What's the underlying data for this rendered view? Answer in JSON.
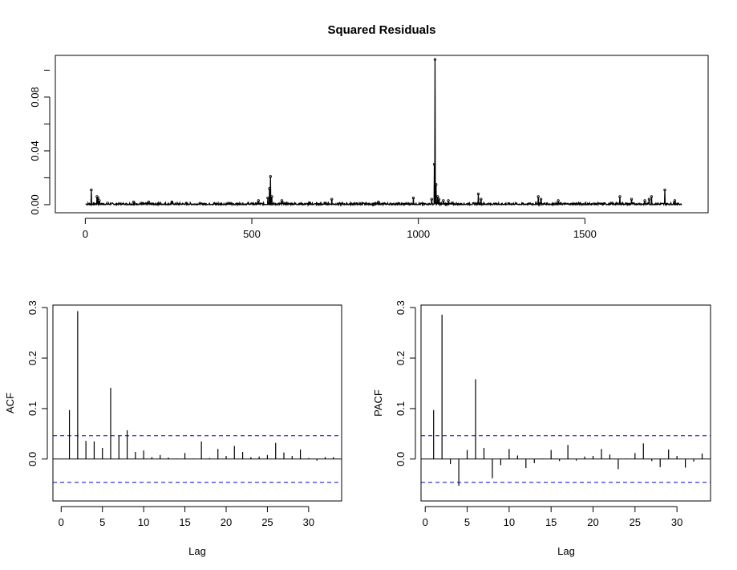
{
  "chart_data": [
    {
      "type": "line",
      "title": "Squared Residuals",
      "xlabel": "",
      "ylabel": "",
      "xlim": [
        -90,
        1870
      ],
      "ylim": [
        -0.006,
        0.111
      ],
      "x_ticks": [
        0,
        500,
        1000,
        1500
      ],
      "x_tick_labels": [
        "0",
        "500",
        "1000",
        "1500"
      ],
      "y_ticks": [
        0.0,
        0.04,
        0.08
      ],
      "y_tick_labels": [
        "0.00",
        "0.04",
        "0.08"
      ],
      "n_obs": 1790,
      "baseline_level": 0.0007,
      "spikes": [
        {
          "x": 18,
          "y": 0.011
        },
        {
          "x": 35,
          "y": 0.006
        },
        {
          "x": 38,
          "y": 0.005
        },
        {
          "x": 42,
          "y": 0.003
        },
        {
          "x": 145,
          "y": 0.002
        },
        {
          "x": 190,
          "y": 0.002
        },
        {
          "x": 260,
          "y": 0.002
        },
        {
          "x": 520,
          "y": 0.003
        },
        {
          "x": 548,
          "y": 0.005
        },
        {
          "x": 553,
          "y": 0.012
        },
        {
          "x": 556,
          "y": 0.021
        },
        {
          "x": 560,
          "y": 0.006
        },
        {
          "x": 590,
          "y": 0.003
        },
        {
          "x": 740,
          "y": 0.004
        },
        {
          "x": 880,
          "y": 0.002
        },
        {
          "x": 985,
          "y": 0.005
        },
        {
          "x": 1040,
          "y": 0.004
        },
        {
          "x": 1048,
          "y": 0.03
        },
        {
          "x": 1050,
          "y": 0.108
        },
        {
          "x": 1053,
          "y": 0.015
        },
        {
          "x": 1058,
          "y": 0.006
        },
        {
          "x": 1062,
          "y": 0.004
        },
        {
          "x": 1075,
          "y": 0.003
        },
        {
          "x": 1090,
          "y": 0.003
        },
        {
          "x": 1180,
          "y": 0.008
        },
        {
          "x": 1188,
          "y": 0.004
        },
        {
          "x": 1360,
          "y": 0.006
        },
        {
          "x": 1368,
          "y": 0.004
        },
        {
          "x": 1420,
          "y": 0.003
        },
        {
          "x": 1605,
          "y": 0.006
        },
        {
          "x": 1640,
          "y": 0.004
        },
        {
          "x": 1680,
          "y": 0.003
        },
        {
          "x": 1693,
          "y": 0.004
        },
        {
          "x": 1700,
          "y": 0.006
        },
        {
          "x": 1740,
          "y": 0.011
        },
        {
          "x": 1770,
          "y": 0.003
        }
      ]
    },
    {
      "type": "bar",
      "title": "",
      "xlabel": "Lag",
      "ylabel": "ACF",
      "xlim": [
        -1,
        34
      ],
      "ylim": [
        -0.083,
        0.305
      ],
      "x_ticks": [
        0,
        5,
        10,
        15,
        20,
        25,
        30
      ],
      "x_tick_labels": [
        "0",
        "5",
        "10",
        "15",
        "20",
        "25",
        "30"
      ],
      "y_ticks": [
        0.0,
        0.1,
        0.2,
        0.3
      ],
      "y_tick_labels": [
        "0.0",
        "0.1",
        "0.2",
        "0.3"
      ],
      "confidence_band": 0.0463,
      "band_color": "#0000cc",
      "lags": [
        1,
        2,
        3,
        4,
        5,
        6,
        7,
        8,
        9,
        10,
        11,
        12,
        13,
        14,
        15,
        16,
        17,
        18,
        19,
        20,
        21,
        22,
        23,
        24,
        25,
        26,
        27,
        28,
        29,
        30,
        31,
        32,
        33
      ],
      "values": [
        0.097,
        0.293,
        0.036,
        0.035,
        0.022,
        0.141,
        0.046,
        0.057,
        0.014,
        0.017,
        0.004,
        0.008,
        0.003,
        0.001,
        0.012,
        0.001,
        0.035,
        0.002,
        0.02,
        0.006,
        0.026,
        0.014,
        0.004,
        0.005,
        0.008,
        0.032,
        0.013,
        0.006,
        0.019,
        0.002,
        -0.003,
        0.004,
        0.004
      ]
    },
    {
      "type": "bar",
      "title": "",
      "xlabel": "Lag",
      "ylabel": "PACF",
      "xlim": [
        -0.5,
        34
      ],
      "ylim": [
        -0.083,
        0.305
      ],
      "x_ticks": [
        0,
        5,
        10,
        15,
        20,
        25,
        30
      ],
      "x_tick_labels": [
        "0",
        "5",
        "10",
        "15",
        "20",
        "25",
        "30"
      ],
      "y_ticks": [
        0.0,
        0.1,
        0.2,
        0.3
      ],
      "y_tick_labels": [
        "0.0",
        "0.1",
        "0.2",
        "0.3"
      ],
      "confidence_band": 0.0463,
      "band_color": "#0000cc",
      "lags": [
        1,
        2,
        3,
        4,
        5,
        6,
        7,
        8,
        9,
        10,
        11,
        12,
        13,
        14,
        15,
        16,
        17,
        18,
        19,
        20,
        21,
        22,
        23,
        24,
        25,
        26,
        27,
        28,
        29,
        30,
        31,
        32,
        33
      ],
      "values": [
        0.097,
        0.286,
        -0.01,
        -0.053,
        0.018,
        0.158,
        0.022,
        -0.038,
        -0.012,
        0.02,
        0.007,
        -0.018,
        -0.008,
        0.001,
        0.018,
        -0.004,
        0.028,
        -0.003,
        0.005,
        0.006,
        0.02,
        0.009,
        -0.02,
        0.001,
        0.012,
        0.031,
        -0.004,
        -0.016,
        0.019,
        0.006,
        -0.017,
        -0.005,
        0.011
      ]
    }
  ]
}
